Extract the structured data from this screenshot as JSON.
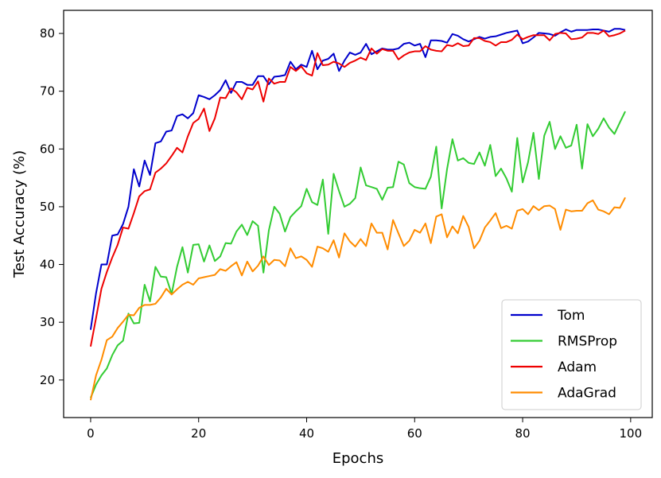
{
  "chart_data": {
    "type": "line",
    "title": "",
    "xlabel": "Epochs",
    "ylabel": "Test Accuracy (%)",
    "xlim": [
      -5,
      104
    ],
    "ylim": [
      13.5,
      84
    ],
    "xticks": [
      0,
      20,
      40,
      60,
      80,
      100
    ],
    "yticks": [
      20,
      30,
      40,
      50,
      60,
      70,
      80
    ],
    "grid": false,
    "legend_position": "bottom-right",
    "series": [
      {
        "name": "Tom",
        "color": "#0000cc",
        "values": [
          28.7,
          35.0,
          40.0,
          40.0,
          45.0,
          45.2,
          47.0,
          50.0,
          56.5,
          53.5,
          58.0,
          55.5,
          61.0,
          61.3,
          63.0,
          63.2,
          65.7,
          66.0,
          65.3,
          66.2,
          69.3,
          69.0,
          68.6,
          69.3,
          70.2,
          71.9,
          69.7,
          71.6,
          71.6,
          71.1,
          71.1,
          72.6,
          72.6,
          71.2,
          72.5,
          72.6,
          72.8,
          75.1,
          73.8,
          74.6,
          74.2,
          77.0,
          73.8,
          75.3,
          75.6,
          76.5,
          73.5,
          75.3,
          76.7,
          76.3,
          76.7,
          78.2,
          76.4,
          76.9,
          77.4,
          77.2,
          77.2,
          77.4,
          78.2,
          78.4,
          77.9,
          78.2,
          75.9,
          78.8,
          78.8,
          78.7,
          78.4,
          79.9,
          79.6,
          79.0,
          78.6,
          79.0,
          79.4,
          79.1,
          79.4,
          79.5,
          79.8,
          80.1,
          80.3,
          80.5,
          78.3,
          78.6,
          79.3,
          80.1,
          80.0,
          79.9,
          79.6,
          80.2,
          80.7,
          80.3,
          80.6,
          80.6,
          80.6,
          80.7,
          80.7,
          80.5,
          80.3,
          80.8,
          80.8,
          80.6
        ]
      },
      {
        "name": "RMSProp",
        "color": "#33cc33",
        "values": [
          16.9,
          19.2,
          20.8,
          22.0,
          24.3,
          26.0,
          26.8,
          31.5,
          29.8,
          29.9,
          36.5,
          33.6,
          39.6,
          37.9,
          37.8,
          34.9,
          39.6,
          43.0,
          38.6,
          43.4,
          43.5,
          40.5,
          43.3,
          40.6,
          41.4,
          43.7,
          43.6,
          45.7,
          46.9,
          45.1,
          47.5,
          46.7,
          38.6,
          45.9,
          50.0,
          48.8,
          45.7,
          48.2,
          49.2,
          50.1,
          53.1,
          50.8,
          50.3,
          54.7,
          45.3,
          55.7,
          52.7,
          50.0,
          50.5,
          51.5,
          56.8,
          53.7,
          53.4,
          53.1,
          51.2,
          53.3,
          53.4,
          57.8,
          57.3,
          54.1,
          53.4,
          53.2,
          53.1,
          55.2,
          60.4,
          49.7,
          56.5,
          61.7,
          58.0,
          58.4,
          57.6,
          57.4,
          59.4,
          57.1,
          60.7,
          55.3,
          56.6,
          54.9,
          52.6,
          61.9,
          54.2,
          57.7,
          62.8,
          54.8,
          62.3,
          64.7,
          60.0,
          62.2,
          60.2,
          60.6,
          64.2,
          56.6,
          64.3,
          62.2,
          63.5,
          65.3,
          63.7,
          62.6,
          64.6,
          66.5
        ]
      },
      {
        "name": "Adam",
        "color": "#ee0000",
        "values": [
          25.8,
          30.7,
          35.8,
          38.7,
          41.2,
          43.4,
          46.4,
          46.2,
          48.9,
          51.8,
          52.7,
          53.0,
          55.9,
          56.6,
          57.5,
          58.8,
          60.2,
          59.4,
          62.2,
          64.5,
          65.2,
          67.0,
          63.1,
          65.3,
          68.9,
          68.8,
          70.5,
          69.8,
          68.6,
          70.6,
          70.3,
          71.7,
          68.2,
          72.2,
          71.3,
          71.6,
          71.6,
          74.2,
          73.5,
          74.3,
          73.1,
          72.7,
          76.6,
          74.5,
          74.6,
          75.1,
          74.8,
          74.2,
          74.9,
          75.3,
          75.8,
          75.4,
          77.4,
          76.5,
          77.3,
          77.0,
          77.0,
          75.5,
          76.2,
          76.7,
          76.9,
          76.9,
          77.8,
          77.2,
          77.0,
          76.9,
          78.0,
          77.8,
          78.3,
          77.8,
          77.9,
          79.2,
          79.2,
          78.7,
          78.5,
          77.9,
          78.5,
          78.5,
          78.9,
          79.8,
          79.0,
          79.4,
          79.7,
          79.7,
          79.7,
          78.8,
          79.9,
          80.1,
          80.0,
          79.0,
          79.1,
          79.3,
          80.1,
          80.1,
          79.9,
          80.5,
          79.5,
          79.7,
          80.0,
          80.5
        ]
      },
      {
        "name": "AdaGrad",
        "color": "#ff8c00",
        "values": [
          16.5,
          20.8,
          23.5,
          26.9,
          27.5,
          29.0,
          30.1,
          31.3,
          31.2,
          32.5,
          33.0,
          33.0,
          33.2,
          34.3,
          35.8,
          34.8,
          35.7,
          36.5,
          37.0,
          36.5,
          37.6,
          37.8,
          38.0,
          38.2,
          39.2,
          38.9,
          39.7,
          40.4,
          38.1,
          40.5,
          38.8,
          39.8,
          41.4,
          39.9,
          40.8,
          40.7,
          39.7,
          42.8,
          41.1,
          41.4,
          40.8,
          39.6,
          43.1,
          42.8,
          42.2,
          44.2,
          41.2,
          45.4,
          44.0,
          43.1,
          44.4,
          43.2,
          47.1,
          45.5,
          45.5,
          42.6,
          47.7,
          45.4,
          43.2,
          44.1,
          46.0,
          45.5,
          47.1,
          43.7,
          48.3,
          48.7,
          44.7,
          46.6,
          45.4,
          48.4,
          46.5,
          42.8,
          44.1,
          46.4,
          47.6,
          48.9,
          46.3,
          46.7,
          46.2,
          49.3,
          49.6,
          48.7,
          50.1,
          49.4,
          50.1,
          50.2,
          49.6,
          46.0,
          49.5,
          49.2,
          49.3,
          49.3,
          50.6,
          51.1,
          49.5,
          49.2,
          48.7,
          49.9,
          49.8,
          51.6
        ]
      }
    ]
  }
}
